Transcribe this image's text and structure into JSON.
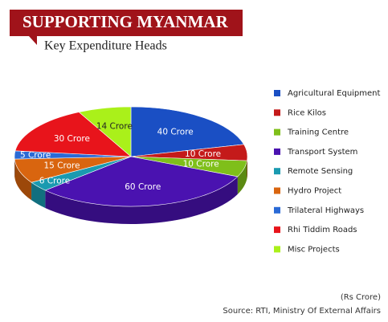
{
  "chart_data": {
    "type": "pie",
    "title": "SUPPORTING MYANMAR",
    "subtitle": "Key Expenditure Heads",
    "unit_note": "(Rs Crore)",
    "source": "Source: RTI, Ministry Of External Affairs",
    "categories": [
      "Agricultural Equipment",
      "Rice Kilos",
      "Training Centre",
      "Transport System",
      "Remote Sensing",
      "Hydro Project",
      "Trilateral Highways",
      "Rhi Tiddim Roads",
      "Misc Projects"
    ],
    "values": [
      40,
      10,
      10,
      60,
      6,
      15,
      5,
      30,
      14
    ],
    "value_labels": [
      "40 Crore",
      "10 Crore",
      "10 Crore",
      "60 Crore",
      "6 Crore",
      "15 Crore",
      "5 Crore",
      "30 Crore",
      "14 Crore"
    ],
    "colors": [
      "#1a4fc4",
      "#c41a1a",
      "#7fbf1a",
      "#4a12b0",
      "#1a9ab0",
      "#d9650f",
      "#2a6ad6",
      "#e8141b",
      "#aaf01a"
    ],
    "legend": "right"
  }
}
